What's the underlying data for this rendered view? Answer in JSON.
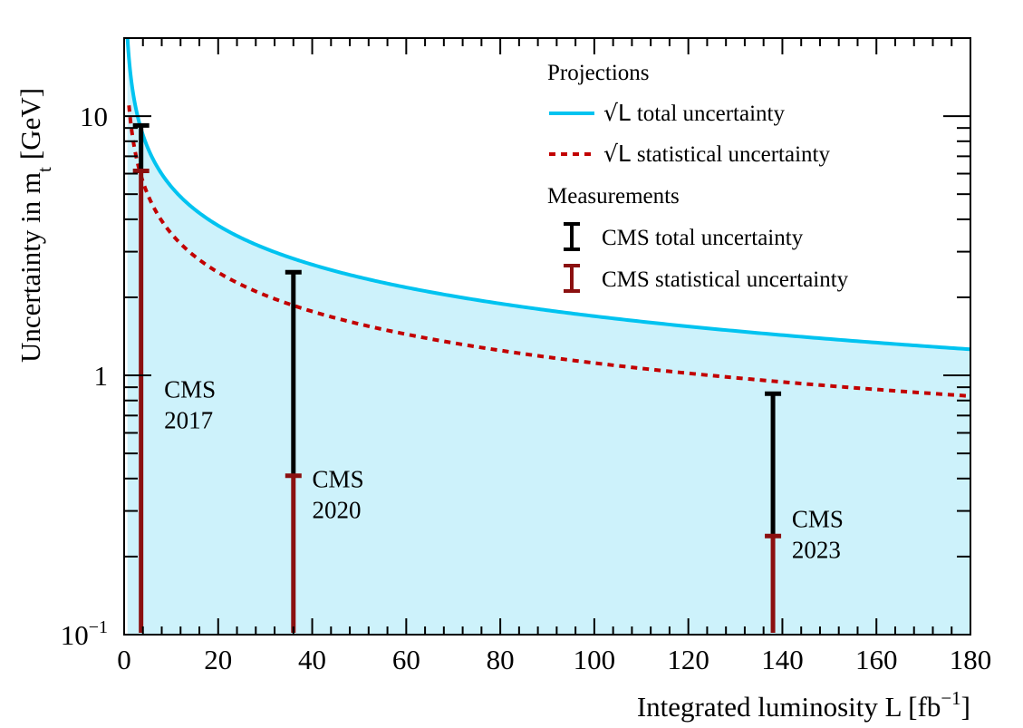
{
  "chart_data": {
    "type": "line",
    "xlabel": "Integrated luminosity L [fb",
    "xlabel_sup": "−1",
    "xlabel_close": "]",
    "ylabel": "Uncertainty in m",
    "ylabel_sub": "t",
    "ylabel_unit": "[GeV]",
    "xlim": [
      0,
      180
    ],
    "ylim": [
      0.1,
      20
    ],
    "yscale": "log",
    "x_ticks": [
      0,
      20,
      40,
      60,
      80,
      100,
      120,
      140,
      160,
      180
    ],
    "x_tick_labels": [
      "0",
      "20",
      "40",
      "60",
      "80",
      "100",
      "120",
      "140",
      "160",
      "180"
    ],
    "y_ticks": [
      {
        "value": 0.1,
        "base": "10",
        "exp": "−1"
      },
      {
        "value": 1,
        "base": "1",
        "exp": ""
      },
      {
        "value": 10,
        "base": "10",
        "exp": ""
      }
    ],
    "series": [
      {
        "name": "total_projection",
        "style": "solid",
        "color": "#00c3f0",
        "fill": "#cdf2fb",
        "reference_x": 138,
        "reference_y": 1.44
      },
      {
        "name": "stat_projection",
        "style": "dashed",
        "color": "#c20000",
        "reference_x": 138,
        "reference_y": 0.95
      }
    ],
    "measurements": [
      {
        "year_lines": [
          "CMS",
          "2017"
        ],
        "x": 3.6,
        "total": 9.2,
        "stat": 6.15,
        "label_x": 8.5,
        "label_y": 0.82
      },
      {
        "year_lines": [
          "CMS",
          "2020"
        ],
        "x": 36,
        "total": 2.5,
        "stat": 0.41,
        "label_x": 40,
        "label_y": 0.37
      },
      {
        "year_lines": [
          "CMS",
          "2023"
        ],
        "x": 138,
        "total": 0.85,
        "stat": 0.24,
        "label_x": 142,
        "label_y": 0.26
      }
    ],
    "colors": {
      "total_bar": "#000000",
      "stat_bar": "#8b1010"
    }
  },
  "legend": {
    "projections_header": "Projections",
    "sqrt_symbol": "√L",
    "total_proj_label": "total uncertainty",
    "stat_proj_label": "statistical uncertainty",
    "measurements_header": "Measurements",
    "cms_total_label": "CMS total uncertainty",
    "cms_stat_label": "CMS statistical uncertainty"
  }
}
